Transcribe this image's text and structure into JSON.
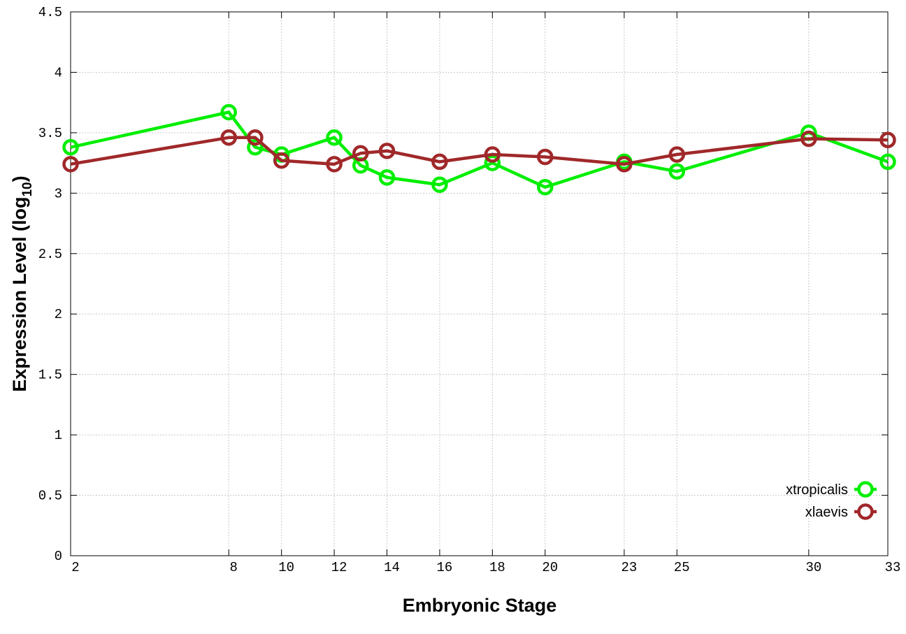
{
  "chart_data": {
    "type": "line",
    "title": "",
    "xlabel": "Embryonic Stage",
    "ylabel": "Expression Level (log",
    "ylabel_sub": "10",
    "ylabel_close": ")",
    "xlim": [
      2,
      33
    ],
    "ylim": [
      0,
      4.5
    ],
    "x_ticks": [
      2,
      8,
      10,
      12,
      14,
      16,
      18,
      20,
      23,
      25,
      30,
      33
    ],
    "y_ticks": [
      "0",
      "0.5",
      "1",
      "1.5",
      "2",
      "2.5",
      "3",
      "3.5",
      "4",
      "4.5"
    ],
    "grid": true,
    "legend_position": "bottom-right",
    "x": [
      2,
      8,
      9,
      10,
      12,
      13,
      14,
      16,
      18,
      20,
      23,
      25,
      30,
      33
    ],
    "series": [
      {
        "name": "xtropicalis",
        "color": "#00ee00",
        "values": [
          3.38,
          3.67,
          3.38,
          3.32,
          3.46,
          3.23,
          3.13,
          3.07,
          3.25,
          3.05,
          3.26,
          3.18,
          3.5,
          3.26
        ]
      },
      {
        "name": "xlaevis",
        "color": "#a0282a",
        "values": [
          3.24,
          3.46,
          3.46,
          3.27,
          3.24,
          3.33,
          3.35,
          3.26,
          3.32,
          3.3,
          3.24,
          3.32,
          3.45,
          3.44
        ]
      }
    ]
  }
}
